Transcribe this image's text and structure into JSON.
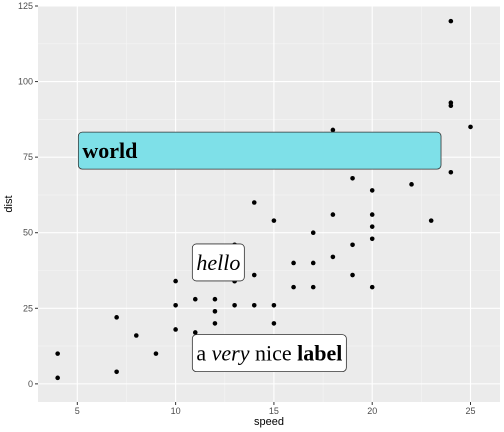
{
  "chart_data": {
    "type": "scatter",
    "title": "",
    "xlabel": "speed",
    "ylabel": "dist",
    "xlim": [
      3.0,
      26.5
    ],
    "ylim": [
      -6,
      125
    ],
    "xticks": [
      5,
      10,
      15,
      20,
      25
    ],
    "yticks": [
      0,
      25,
      50,
      75,
      100,
      125
    ],
    "grid": true,
    "colors": {
      "panel": "#ebebeb",
      "grid_major": "#ffffff",
      "grid_minor": "#f5f5f5",
      "points": "#000000",
      "world_fill": "#7ee0e8",
      "label_fill": "#ffffff"
    },
    "points": [
      [
        4,
        2
      ],
      [
        4,
        10
      ],
      [
        7,
        4
      ],
      [
        7,
        22
      ],
      [
        8,
        16
      ],
      [
        9,
        10
      ],
      [
        10,
        18
      ],
      [
        10,
        26
      ],
      [
        10,
        34
      ],
      [
        11,
        17
      ],
      [
        11,
        28
      ],
      [
        12,
        14
      ],
      [
        12,
        20
      ],
      [
        12,
        24
      ],
      [
        12,
        28
      ],
      [
        13,
        26
      ],
      [
        13,
        34
      ],
      [
        13,
        34
      ],
      [
        13,
        46
      ],
      [
        14,
        26
      ],
      [
        14,
        36
      ],
      [
        14,
        60
      ],
      [
        14,
        80
      ],
      [
        15,
        20
      ],
      [
        15,
        26
      ],
      [
        15,
        54
      ],
      [
        16,
        32
      ],
      [
        16,
        40
      ],
      [
        17,
        32
      ],
      [
        17,
        40
      ],
      [
        17,
        50
      ],
      [
        18,
        42
      ],
      [
        18,
        56
      ],
      [
        18,
        76
      ],
      [
        18,
        84
      ],
      [
        19,
        36
      ],
      [
        19,
        46
      ],
      [
        19,
        68
      ],
      [
        20,
        32
      ],
      [
        20,
        48
      ],
      [
        20,
        52
      ],
      [
        20,
        56
      ],
      [
        20,
        64
      ],
      [
        22,
        66
      ],
      [
        23,
        54
      ],
      [
        24,
        70
      ],
      [
        24,
        92
      ],
      [
        24,
        93
      ],
      [
        24,
        120
      ],
      [
        25,
        85
      ]
    ],
    "annotations": [
      {
        "key": "world",
        "x": 5.0,
        "y": 77,
        "fill": "#7ee0e8",
        "segments": [
          {
            "text": "world",
            "style": "bold"
          }
        ]
      },
      {
        "key": "hello",
        "x": 10.8,
        "y": 40,
        "fill": "#ffffff",
        "segments": [
          {
            "text": "hello",
            "style": "italic"
          }
        ]
      },
      {
        "key": "nice_label",
        "x": 10.8,
        "y": 10,
        "fill": "#ffffff",
        "segments": [
          {
            "text": "a ",
            "style": "normal"
          },
          {
            "text": "very",
            "style": "italic"
          },
          {
            "text": " nice ",
            "style": "normal"
          },
          {
            "text": "label",
            "style": "bold"
          }
        ]
      }
    ]
  }
}
